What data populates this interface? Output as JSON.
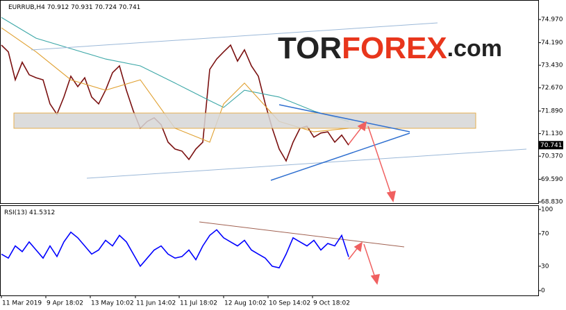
{
  "logo": {
    "prefix": "TOR",
    "highlight": "FOREX",
    "suffix": ".com"
  },
  "chart_data": [
    {
      "type": "line",
      "title": "EURRUB,H4",
      "ohlc": [
        70.912,
        70.931,
        70.724,
        70.741
      ],
      "xlim": [
        0,
        77.3
      ],
      "ylim": [
        68.81,
        75.58
      ],
      "yticks": [
        {
          "value": 74.97,
          "label": "74.970"
        },
        {
          "value": 74.19,
          "label": "74.190"
        },
        {
          "value": 73.43,
          "label": "73.430"
        },
        {
          "value": 72.67,
          "label": "72.670"
        },
        {
          "value": 71.89,
          "label": "71.890"
        },
        {
          "value": 71.13,
          "label": "71.130"
        },
        {
          "value": 70.37,
          "label": "70.370"
        },
        {
          "value": 69.59,
          "label": "69.590"
        },
        {
          "value": 68.83,
          "label": "68.830"
        }
      ],
      "xticks": [
        {
          "value": 0,
          "label": "11 Mar 2019"
        },
        {
          "value": 6.4,
          "label": "9 Apr 18:02"
        },
        {
          "value": 12.8,
          "label": "13 May 10:02"
        },
        {
          "value": 19.3,
          "label": "11 Jun 14:02"
        },
        {
          "value": 25.6,
          "label": "11 Jul 18:02"
        },
        {
          "value": 32,
          "label": "12 Aug 10:02"
        },
        {
          "value": 38.4,
          "label": "10 Sep 14:02"
        },
        {
          "value": 44.8,
          "label": "9 Oct 18:02"
        }
      ],
      "series": [
        {
          "color": "#7a1010",
          "x": [
            0,
            1,
            2,
            3,
            4,
            5,
            6,
            7,
            8,
            9,
            10,
            11,
            12,
            13,
            14,
            15,
            16,
            17,
            18,
            19,
            20,
            21,
            22,
            23,
            24,
            25,
            26,
            27,
            28,
            29,
            30,
            31,
            32,
            33,
            34,
            35,
            36,
            37,
            38,
            39,
            40,
            41,
            42,
            43,
            44,
            45,
            46,
            47,
            48,
            49,
            50
          ],
          "values": [
            74.11,
            73.88,
            72.94,
            73.53,
            73.11,
            73.01,
            72.94,
            72.13,
            71.78,
            72.36,
            73.06,
            72.71,
            73.01,
            72.36,
            72.13,
            72.59,
            73.18,
            73.41,
            72.59,
            71.89,
            71.31,
            71.54,
            71.66,
            71.43,
            70.84,
            70.61,
            70.54,
            70.26,
            70.61,
            70.84,
            73.29,
            73.64,
            73.88,
            74.11,
            73.57,
            73.95,
            73.41,
            73.06,
            72.13,
            71.31,
            70.61,
            70.21,
            70.84,
            71.31,
            71.38,
            71.01,
            71.15,
            71.19,
            70.84,
            71.08,
            70.741
          ]
        },
        {
          "color": "#3aa6a6",
          "x": [
            0,
            5,
            10,
            15,
            20,
            25,
            30,
            32,
            35,
            40,
            45,
            50
          ],
          "values": [
            75.04,
            74.34,
            73.99,
            73.64,
            73.41,
            72.83,
            72.24,
            72.01,
            72.59,
            72.36,
            71.89,
            71.54
          ]
        },
        {
          "color": "#e0a030",
          "x": [
            0,
            5,
            10,
            15,
            20,
            25,
            30,
            32,
            35,
            40,
            45,
            50
          ],
          "values": [
            74.69,
            73.88,
            72.94,
            72.59,
            72.94,
            71.31,
            70.84,
            72.13,
            72.83,
            71.54,
            71.19,
            71.31
          ]
        }
      ]
    },
    {
      "type": "line",
      "title": "RSI(13)",
      "xlim": [
        0,
        77.3
      ],
      "ylim": [
        0,
        100
      ],
      "yticks": [
        100,
        70,
        30,
        0
      ],
      "series": [
        {
          "color": "#0000ff",
          "x": [
            0,
            1,
            2,
            3,
            4,
            5,
            6,
            7,
            8,
            9,
            10,
            11,
            12,
            13,
            14,
            15,
            16,
            17,
            18,
            19,
            20,
            21,
            22,
            23,
            24,
            25,
            26,
            27,
            28,
            29,
            30,
            31,
            32,
            33,
            34,
            35,
            36,
            37,
            38,
            39,
            40,
            41,
            42,
            43,
            44,
            45,
            46,
            47,
            48,
            49,
            50
          ],
          "values": [
            45,
            40,
            55,
            48,
            60,
            50,
            40,
            55,
            42,
            60,
            72,
            65,
            55,
            45,
            50,
            62,
            55,
            68,
            60,
            45,
            30,
            40,
            50,
            55,
            45,
            40,
            42,
            50,
            38,
            55,
            68,
            75,
            65,
            60,
            55,
            62,
            50,
            45,
            40,
            30,
            28,
            45,
            65,
            60,
            55,
            62,
            50,
            58,
            55,
            68,
            41.5312
          ]
        }
      ]
    }
  ]
}
